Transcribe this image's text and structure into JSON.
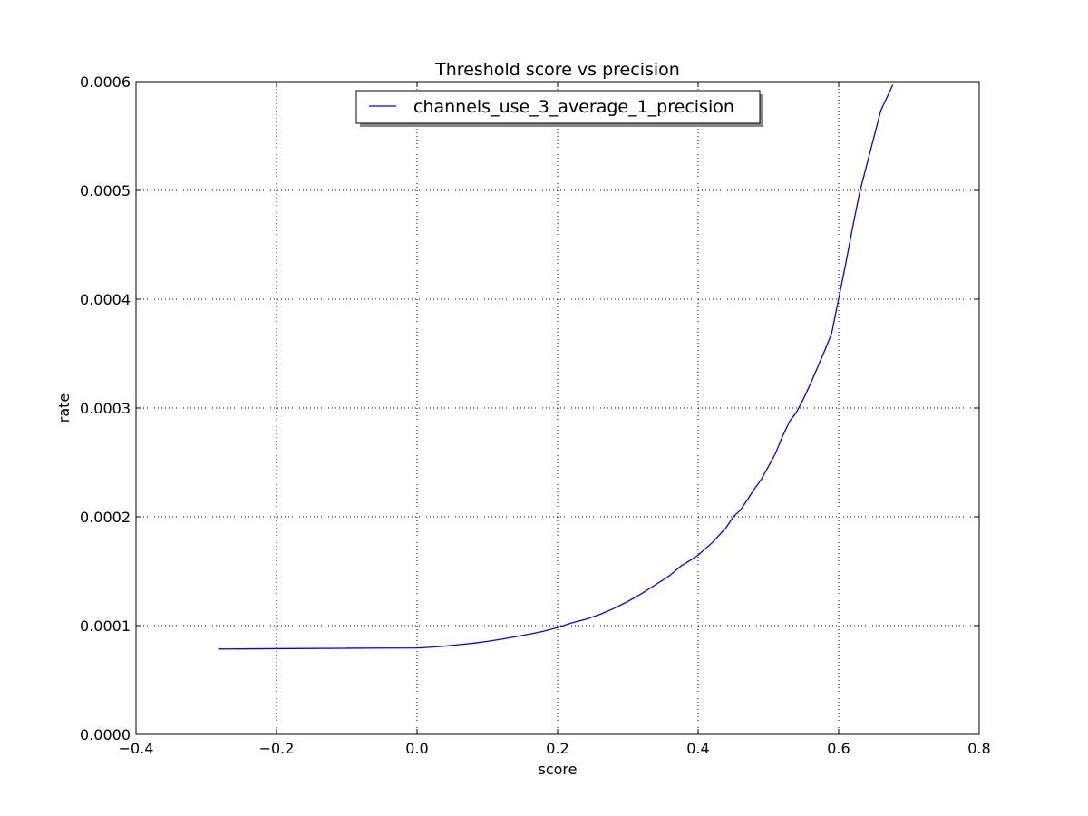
{
  "chart_data": {
    "type": "line",
    "title": "Threshold score vs precision",
    "xlabel": "score",
    "ylabel": "rate",
    "xlim": [
      -0.4,
      0.8
    ],
    "ylim": [
      0.0,
      0.0006
    ],
    "x_ticks": [
      -0.4,
      -0.2,
      0.0,
      0.2,
      0.4,
      0.6,
      0.8
    ],
    "x_tick_labels": [
      "−0.4",
      "−0.2",
      "0.0",
      "0.2",
      "0.4",
      "0.6",
      "0.8"
    ],
    "y_ticks": [
      0.0,
      0.0001,
      0.0002,
      0.0003,
      0.0004,
      0.0005,
      0.0006
    ],
    "y_tick_labels": [
      "0.0000",
      "0.0001",
      "0.0002",
      "0.0003",
      "0.0004",
      "0.0005",
      "0.0006"
    ],
    "grid": true,
    "legend_position": "upper center",
    "series": [
      {
        "name": "channels_use_3_average_1_precision",
        "color": "#0000ff",
        "x": [
          -0.283,
          -0.25,
          -0.2,
          -0.15,
          -0.1,
          -0.05,
          0.0,
          0.02,
          0.04,
          0.06,
          0.08,
          0.1,
          0.12,
          0.14,
          0.16,
          0.18,
          0.2,
          0.22,
          0.24,
          0.26,
          0.28,
          0.3,
          0.32,
          0.34,
          0.36,
          0.375,
          0.39,
          0.4,
          0.42,
          0.44,
          0.45,
          0.46,
          0.47,
          0.48,
          0.49,
          0.5,
          0.51,
          0.52,
          0.53,
          0.54,
          0.55,
          0.56,
          0.57,
          0.58,
          0.59,
          0.6,
          0.61,
          0.62,
          0.63,
          0.64,
          0.65,
          0.66,
          0.677
        ],
        "y": [
          7.85e-05,
          7.86e-05,
          7.88e-05,
          7.9e-05,
          7.92e-05,
          7.94e-05,
          7.95e-05,
          8.02e-05,
          8.12e-05,
          8.25e-05,
          8.38e-05,
          8.55e-05,
          8.75e-05,
          8.98e-05,
          9.22e-05,
          9.48e-05,
          9.82e-05,
          0.0001025,
          0.0001058,
          0.0001102,
          0.0001158,
          0.0001222,
          0.0001295,
          0.0001378,
          0.0001462,
          0.0001545,
          0.0001605,
          0.0001648,
          0.0001762,
          0.0001902,
          0.0002,
          0.000206,
          0.0002155,
          0.0002255,
          0.0002345,
          0.0002462,
          0.0002582,
          0.0002738,
          0.0002875,
          0.0002962,
          0.0003085,
          0.0003225,
          0.0003375,
          0.0003525,
          0.0003685,
          0.0004005,
          0.0004325,
          0.0004665,
          0.0004985,
          0.0005235,
          0.0005485,
          0.0005735,
          0.000597
        ]
      }
    ]
  }
}
